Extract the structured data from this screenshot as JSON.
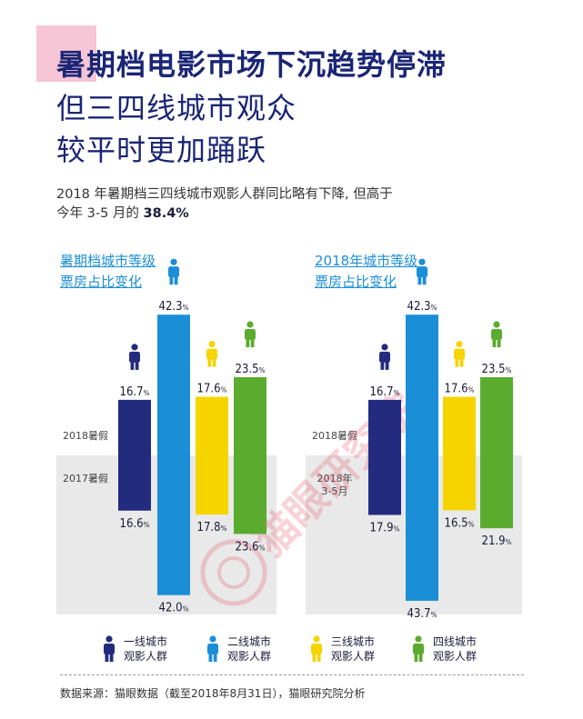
{
  "title": {
    "line1": "暑期档电影市场下沉趋势停滞",
    "line2": "但三四线城市观众",
    "line3": "较平时更加踊跃"
  },
  "subtitle": {
    "line1": "2018 年暑期档三四线城市观影人群同比略有下降, 但高于",
    "line2_prefix": "今年 3-5 月的 ",
    "line2_value": "38.4%"
  },
  "panels": [
    {
      "title_line1": "暑期档城市等级",
      "title_line2": "票房占比变化",
      "top_period": "2018暑假",
      "bottom_period": "2017暑假"
    },
    {
      "title_line1": "2018年城市等级",
      "title_line2": "票房占比变化",
      "top_period": "2018暑假",
      "bottom_period_line1": "2018年",
      "bottom_period_line2": "3-5月"
    }
  ],
  "legend": [
    {
      "line1": "一线城市",
      "line2": "观影人群",
      "color": "#232b7e"
    },
    {
      "line1": "二线城市",
      "line2": "观影人群",
      "color": "#1a8fd8"
    },
    {
      "line1": "三线城市",
      "line2": "观影人群",
      "color": "#f5d400"
    },
    {
      "line1": "四线城市",
      "line2": "观影人群",
      "color": "#5aab2e"
    }
  ],
  "footer": "数据来源：猫眼数据（截至2018年8月31日），猫眼研究院分析",
  "watermark": "猫眼研究院",
  "colors": {
    "tier1": "#232b7e",
    "tier2": "#1a8fd8",
    "tier3": "#f5d400",
    "tier4": "#5aab2e",
    "title": "#1a2575",
    "accent": "#1a8fd8",
    "pink": "#f6c6d6"
  },
  "chart_data": [
    {
      "type": "bar",
      "title": "暑期档城市等级票房占比变化",
      "categories": [
        "一线城市",
        "二线城市",
        "三线城市",
        "四线城市"
      ],
      "series": [
        {
          "name": "2018暑假",
          "values": [
            16.7,
            42.3,
            17.6,
            23.5
          ]
        },
        {
          "name": "2017暑假",
          "values": [
            16.6,
            42.0,
            17.8,
            23.6
          ]
        }
      ],
      "unit": "%"
    },
    {
      "type": "bar",
      "title": "2018年城市等级票房占比变化",
      "categories": [
        "一线城市",
        "二线城市",
        "三线城市",
        "四线城市"
      ],
      "series": [
        {
          "name": "2018暑假",
          "values": [
            16.7,
            42.3,
            17.6,
            23.5
          ]
        },
        {
          "name": "2018年3-5月",
          "values": [
            17.9,
            43.7,
            16.5,
            21.9
          ]
        }
      ],
      "unit": "%"
    }
  ]
}
